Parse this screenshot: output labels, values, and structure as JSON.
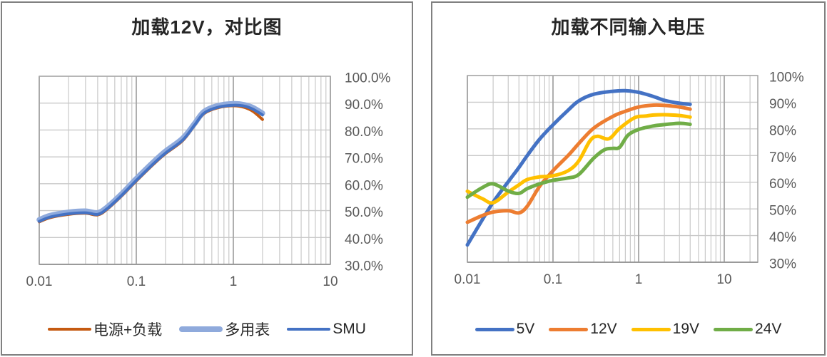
{
  "page": {
    "background_color": "#FFFFFF",
    "panel_border_color": "#808080",
    "gridline_minor_color": "#C9C9C9",
    "gridline_major_color": "#A6A6A6",
    "axis_text_color": "#595959",
    "title_text_color": "#262626"
  },
  "chart_data": [
    {
      "type": "line",
      "title": "加载12V，对比图",
      "x_scale": "log",
      "x_range": [
        0.01,
        10
      ],
      "ylim_percent": [
        30,
        100
      ],
      "x_tick_labels": [
        "0.01",
        "0.1",
        "1",
        "10"
      ],
      "x_tick_values": [
        0.01,
        0.1,
        1,
        10
      ],
      "y_tick_labels": [
        "100.0%",
        "90.0%",
        "80.0%",
        "70.0%",
        "60.0%",
        "50.0%",
        "40.0%",
        "30.0%"
      ],
      "y_tick_values": [
        100,
        90,
        80,
        70,
        60,
        50,
        40,
        30
      ],
      "grid": "horizontal majors + vertical log minors",
      "legend_position": "bottom",
      "series": [
        {
          "name": "电源+负载",
          "color": "#C55A11",
          "width": 4,
          "points": [
            [
              0.01,
              45.8
            ],
            [
              0.013,
              47.4
            ],
            [
              0.02,
              48.6
            ],
            [
              0.03,
              49.0
            ],
            [
              0.04,
              48.4
            ],
            [
              0.05,
              50.5
            ],
            [
              0.07,
              55.3
            ],
            [
              0.1,
              61.0
            ],
            [
              0.15,
              67.2
            ],
            [
              0.2,
              71.2
            ],
            [
              0.3,
              76.0
            ],
            [
              0.4,
              81.7
            ],
            [
              0.5,
              86.1
            ],
            [
              0.7,
              88.3
            ],
            [
              1,
              89.0
            ],
            [
              1.3,
              88.4
            ],
            [
              1.6,
              86.9
            ],
            [
              2,
              83.9
            ]
          ]
        },
        {
          "name": "多用表",
          "color": "#8FAADC",
          "width": 7.5,
          "points": [
            [
              0.01,
              46.6
            ],
            [
              0.013,
              48.2
            ],
            [
              0.02,
              49.4
            ],
            [
              0.03,
              49.8
            ],
            [
              0.04,
              49.2
            ],
            [
              0.05,
              51.3
            ],
            [
              0.07,
              56.1
            ],
            [
              0.1,
              61.9
            ],
            [
              0.15,
              68.1
            ],
            [
              0.2,
              72.1
            ],
            [
              0.3,
              76.9
            ],
            [
              0.4,
              82.5
            ],
            [
              0.5,
              86.9
            ],
            [
              0.7,
              89.1
            ],
            [
              1,
              89.8
            ],
            [
              1.3,
              89.4
            ],
            [
              1.6,
              88.3
            ],
            [
              2,
              86.2
            ]
          ]
        },
        {
          "name": "SMU",
          "color": "#4472C4",
          "width": 4,
          "points": [
            [
              0.01,
              46.0
            ],
            [
              0.013,
              47.6
            ],
            [
              0.02,
              48.8
            ],
            [
              0.03,
              49.2
            ],
            [
              0.04,
              48.6
            ],
            [
              0.05,
              50.7
            ],
            [
              0.07,
              55.5
            ],
            [
              0.1,
              61.2
            ],
            [
              0.15,
              67.4
            ],
            [
              0.2,
              71.4
            ],
            [
              0.3,
              76.2
            ],
            [
              0.4,
              81.9
            ],
            [
              0.5,
              86.3
            ],
            [
              0.7,
              88.5
            ],
            [
              1,
              89.2
            ],
            [
              1.3,
              88.9
            ],
            [
              1.6,
              87.7
            ],
            [
              2,
              85.6
            ]
          ]
        }
      ]
    },
    {
      "type": "line",
      "title": "加载不同输入电压",
      "x_scale": "log",
      "x_range": [
        0.01,
        24
      ],
      "ylim_percent": [
        30,
        100
      ],
      "x_tick_labels": [
        "0.01",
        "0.1",
        "1",
        "10"
      ],
      "x_tick_values": [
        0.01,
        0.1,
        1,
        10
      ],
      "y_tick_labels": [
        "100%",
        "90%",
        "80%",
        "70%",
        "60%",
        "50%",
        "40%",
        "30%"
      ],
      "y_tick_values": [
        100,
        90,
        80,
        70,
        60,
        50,
        40,
        30
      ],
      "grid": "horizontal majors + vertical log minors",
      "legend_position": "bottom",
      "series": [
        {
          "name": "5V",
          "color": "#4472C4",
          "width": 5,
          "points": [
            [
              0.01,
              36.5
            ],
            [
              0.015,
              46.0
            ],
            [
              0.02,
              52.5
            ],
            [
              0.03,
              60.2
            ],
            [
              0.04,
              65.5
            ],
            [
              0.05,
              70.0
            ],
            [
              0.07,
              76.2
            ],
            [
              0.1,
              81.5
            ],
            [
              0.15,
              87.0
            ],
            [
              0.2,
              90.5
            ],
            [
              0.3,
              93.0
            ],
            [
              0.5,
              94.1
            ],
            [
              0.7,
              94.3
            ],
            [
              1,
              93.7
            ],
            [
              1.5,
              92.1
            ],
            [
              2,
              90.7
            ],
            [
              3,
              89.6
            ],
            [
              4,
              89.2
            ]
          ]
        },
        {
          "name": "12V",
          "color": "#ED7D31",
          "width": 5,
          "points": [
            [
              0.01,
              45.0
            ],
            [
              0.015,
              47.5
            ],
            [
              0.02,
              48.8
            ],
            [
              0.03,
              49.3
            ],
            [
              0.04,
              48.5
            ],
            [
              0.05,
              51.0
            ],
            [
              0.07,
              58.5
            ],
            [
              0.1,
              64.3
            ],
            [
              0.15,
              70.0
            ],
            [
              0.2,
              74.5
            ],
            [
              0.3,
              80.3
            ],
            [
              0.5,
              84.7
            ],
            [
              0.7,
              86.6
            ],
            [
              1,
              88.2
            ],
            [
              1.5,
              88.9
            ],
            [
              2,
              88.8
            ],
            [
              3,
              88.2
            ],
            [
              4,
              87.4
            ]
          ]
        },
        {
          "name": "19V",
          "color": "#FFC000",
          "width": 5,
          "points": [
            [
              0.01,
              56.6
            ],
            [
              0.015,
              53.8
            ],
            [
              0.02,
              52.3
            ],
            [
              0.03,
              56.3
            ],
            [
              0.04,
              59.0
            ],
            [
              0.05,
              61.0
            ],
            [
              0.07,
              62.0
            ],
            [
              0.1,
              62.4
            ],
            [
              0.15,
              64.3
            ],
            [
              0.2,
              68.0
            ],
            [
              0.27,
              75.5
            ],
            [
              0.33,
              77.2
            ],
            [
              0.45,
              76.3
            ],
            [
              0.6,
              80.2
            ],
            [
              0.9,
              84.2
            ],
            [
              1.2,
              84.8
            ],
            [
              1.5,
              85.2
            ],
            [
              2,
              85.3
            ],
            [
              3,
              85.0
            ],
            [
              4,
              84.4
            ]
          ]
        },
        {
          "name": "24V",
          "color": "#70AD47",
          "width": 5,
          "points": [
            [
              0.01,
              54.4
            ],
            [
              0.015,
              58.0
            ],
            [
              0.02,
              59.4
            ],
            [
              0.03,
              56.7
            ],
            [
              0.04,
              55.8
            ],
            [
              0.05,
              57.6
            ],
            [
              0.07,
              59.4
            ],
            [
              0.1,
              60.7
            ],
            [
              0.15,
              61.6
            ],
            [
              0.2,
              62.9
            ],
            [
              0.3,
              69.1
            ],
            [
              0.4,
              72.2
            ],
            [
              0.5,
              72.7
            ],
            [
              0.6,
              73.1
            ],
            [
              0.75,
              77.6
            ],
            [
              1,
              79.8
            ],
            [
              1.5,
              81.1
            ],
            [
              2,
              81.6
            ],
            [
              3,
              82.1
            ],
            [
              4,
              81.7
            ]
          ]
        }
      ]
    }
  ]
}
